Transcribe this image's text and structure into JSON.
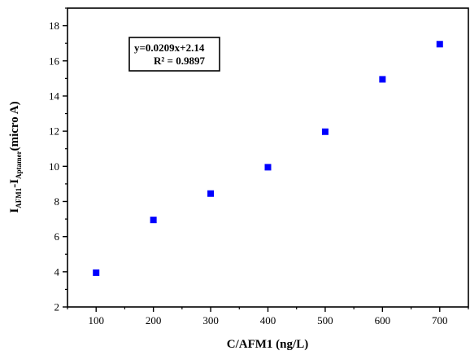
{
  "chart_data": {
    "type": "scatter",
    "xlabel": "C/AFM1 (ng/L)",
    "ylabel": {
      "p1": "I",
      "s1": "AFM1",
      "p2": "-I",
      "s2": "Aptamer",
      "p3": "(micro A)"
    },
    "x_ticks": [
      100,
      200,
      300,
      400,
      500,
      600,
      700
    ],
    "y_ticks": [
      2,
      4,
      6,
      8,
      10,
      12,
      14,
      16,
      18
    ],
    "xlim": [
      50,
      750
    ],
    "ylim": [
      2,
      19
    ],
    "series": [
      {
        "color": "#0000ff",
        "marker": "square",
        "x": [
          100,
          200,
          300,
          400,
          500,
          600,
          700
        ],
        "y": [
          3.95,
          6.95,
          8.45,
          9.95,
          11.97,
          14.95,
          16.95
        ]
      }
    ],
    "annotation": {
      "equation": "y=0.0209x+2.14",
      "r_squared": "R² = 0.9897"
    }
  }
}
